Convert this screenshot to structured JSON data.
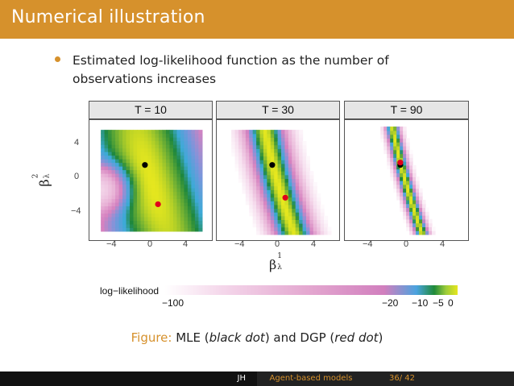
{
  "slide": {
    "title": "Numerical illustration",
    "bullet": "Estimated log-likelihood function as the number of observations increases"
  },
  "chart_data": {
    "type": "heatmap",
    "panels": [
      {
        "label": "T = 10",
        "mle": [
          -0.8,
          1.9
        ],
        "dgp": [
          0.8,
          -2.9
        ]
      },
      {
        "label": "T = 30",
        "mle": [
          -0.8,
          1.9
        ],
        "dgp": [
          0.8,
          -2.1
        ]
      },
      {
        "label": "T = 90",
        "mle": [
          -0.8,
          1.9
        ],
        "dgp": [
          -0.8,
          2.2
        ]
      }
    ],
    "xlabel": "β",
    "xlabel_sup": "1",
    "xlabel_sub": "λ",
    "ylabel": "β",
    "ylabel_sup": "2",
    "ylabel_sub": "λ",
    "x_ticks": [
      "−4",
      "0",
      "4"
    ],
    "x_tick_values": [
      -4,
      0,
      4
    ],
    "y_ticks": [
      "4",
      "0",
      "−4"
    ],
    "y_tick_values": [
      4,
      0,
      -4
    ],
    "xlim": [
      -7,
      7
    ],
    "ylim": [
      -7,
      7
    ],
    "legend": {
      "title": "log−likelihood",
      "labels": [
        "−100",
        "−20",
        "−10",
        "−5",
        "0"
      ]
    },
    "colors": {
      "mle": "#000000",
      "dgp": "#e0001a"
    }
  },
  "caption": {
    "prefix": "Figure:",
    "text1": " MLE (",
    "em1": "black dot",
    "text2": ") and DGP (",
    "em2": "red dot",
    "text3": ")"
  },
  "footer": {
    "author": "JH",
    "short_title": "Agent-based models",
    "page": "36/ 42"
  }
}
